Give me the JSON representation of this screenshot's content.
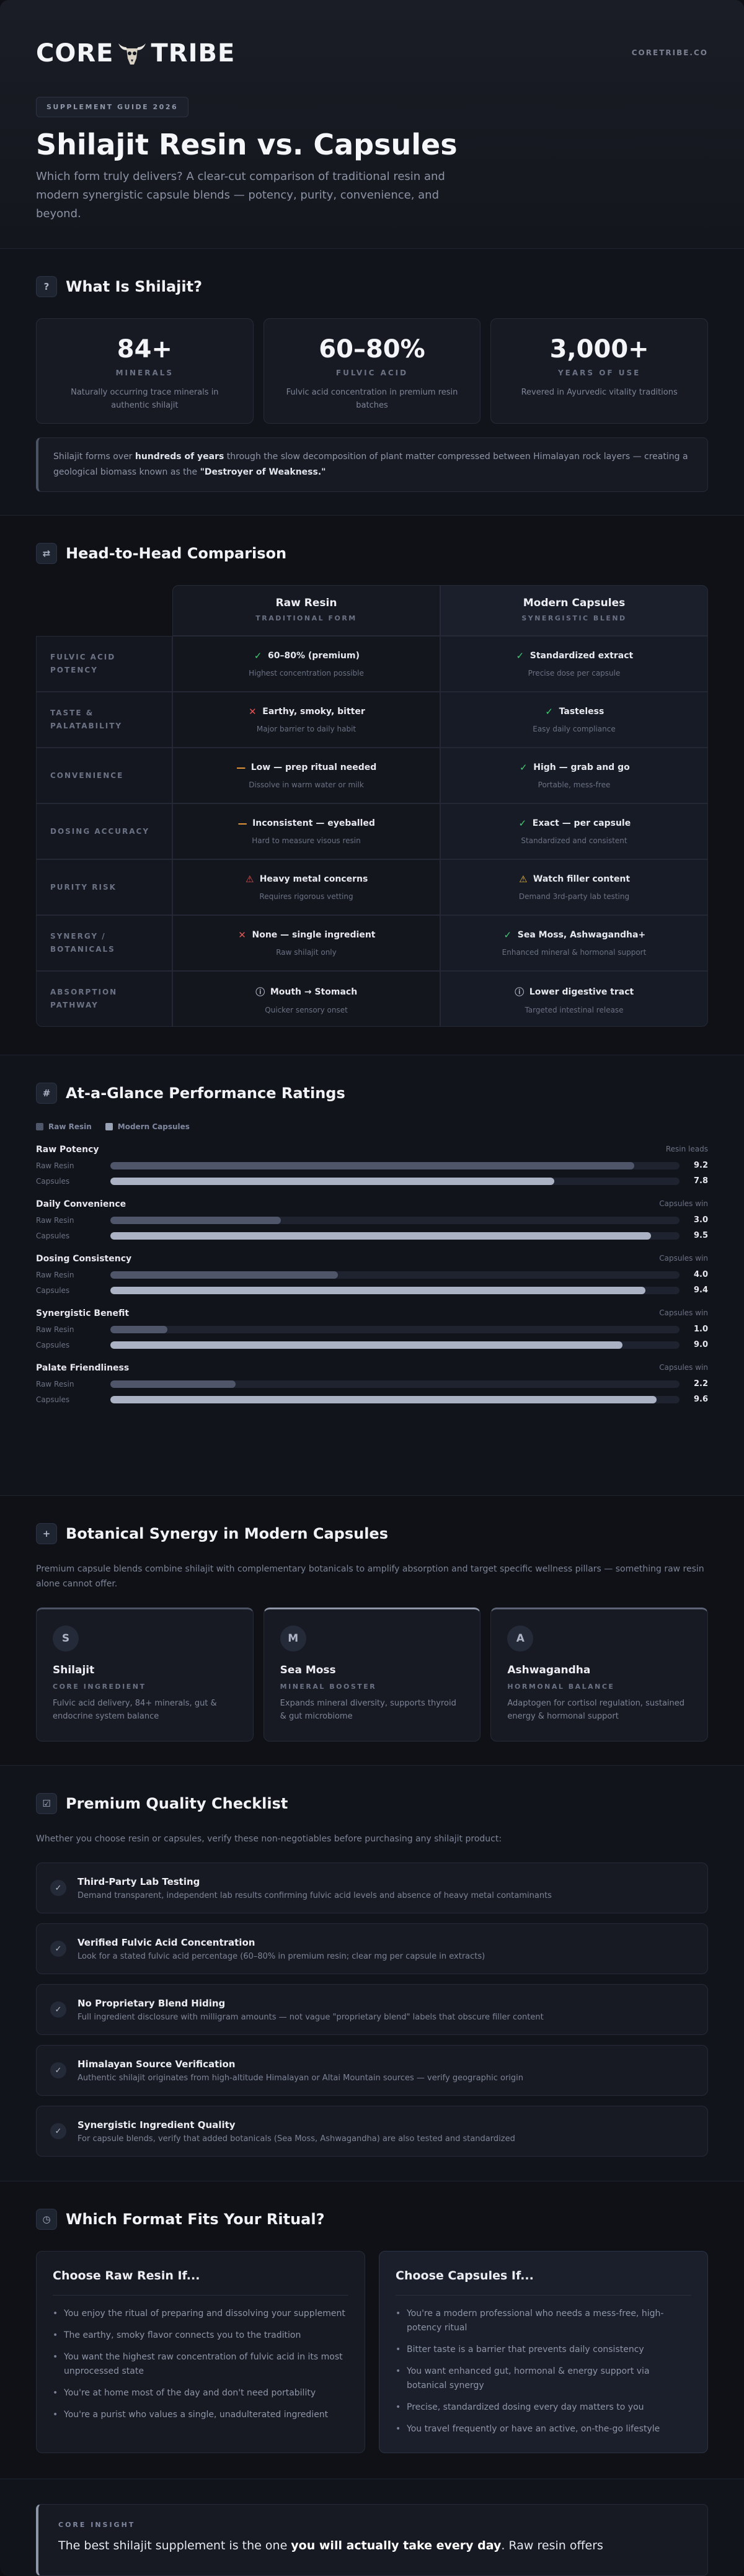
{
  "header": {
    "logo_left": "CORE",
    "logo_right": "TRIBE",
    "site": "CORETRIBE.CO",
    "badge": "SUPPLEMENT GUIDE 2026",
    "title": "Shilajit Resin vs. Capsules",
    "subtitle": "Which form truly delivers? A clear-cut comparison of traditional resin and modern synergistic capsule blends — potency, purity, convenience, and beyond."
  },
  "what": {
    "icon": "question-icon",
    "title": "What Is Shilajit?",
    "stats": [
      {
        "num": "84+",
        "label": "MINERALS",
        "desc": "Naturally occurring trace minerals in authentic shilajit"
      },
      {
        "num": "60–80%",
        "label": "FULVIC ACID",
        "desc": "Fulvic acid concentration in premium resin batches"
      },
      {
        "num": "3,000+",
        "label": "YEARS OF USE",
        "desc": "Revered in Ayurvedic vitality traditions"
      }
    ],
    "quote_a": "Shilajit forms over ",
    "quote_b": "hundreds of years",
    "quote_c": " through the slow decomposition of plant matter compressed between Himalayan rock layers — creating a geological biomass known as the ",
    "quote_d": "\"Destroyer of Weakness.\""
  },
  "compare": {
    "icon": "swap-icon",
    "title": "Head-to-Head Comparison",
    "resin_head": "Raw Resin",
    "resin_sub": "TRADITIONAL FORM",
    "caps_head": "Modern Capsules",
    "caps_sub": "SYNERGISTIC BLEND",
    "rows": [
      {
        "label": "FULVIC ACID POTENCY",
        "resin": {
          "icon": "check",
          "main": "60–80% (premium)",
          "sub": "Highest concentration possible"
        },
        "caps": {
          "icon": "check",
          "main": "Standardized extract",
          "sub": "Precise dose per capsule"
        }
      },
      {
        "label": "TASTE & PALATABILITY",
        "resin": {
          "icon": "x",
          "main": "Earthy, smoky, bitter",
          "sub": "Major barrier to daily habit"
        },
        "caps": {
          "icon": "check",
          "main": "Tasteless",
          "sub": "Easy daily compliance"
        }
      },
      {
        "label": "CONVENIENCE",
        "resin": {
          "icon": "dash",
          "main": "Low — prep ritual needed",
          "sub": "Dissolve in warm water or milk"
        },
        "caps": {
          "icon": "check",
          "main": "High — grab and go",
          "sub": "Portable, mess-free"
        }
      },
      {
        "label": "DOSING ACCURACY",
        "resin": {
          "icon": "dash",
          "main": "Inconsistent — eyeballed",
          "sub": "Hard to measure visous resin"
        },
        "caps": {
          "icon": "check",
          "main": "Exact — per capsule",
          "sub": "Standardized and consistent"
        }
      },
      {
        "label": "PURITY RISK",
        "resin": {
          "icon": "warn-red",
          "main": "Heavy metal concerns",
          "sub": "Requires rigorous vetting"
        },
        "caps": {
          "icon": "warn-amber",
          "main": "Watch filler content",
          "sub": "Demand 3rd-party lab testing"
        }
      },
      {
        "label": "SYNERGY / BOTANICALS",
        "resin": {
          "icon": "x",
          "main": "None — single ingredient",
          "sub": "Raw shilajit only"
        },
        "caps": {
          "icon": "check",
          "main": "Sea Moss, Ashwagandha+",
          "sub": "Enhanced mineral & hormonal support"
        }
      },
      {
        "label": "ABSORPTION PATHWAY",
        "resin": {
          "icon": "info",
          "main": "Mouth → Stomach",
          "sub": "Quicker sensory onset"
        },
        "caps": {
          "icon": "info",
          "main": "Lower digestive tract",
          "sub": "Targeted intestinal release"
        }
      }
    ]
  },
  "ratings": {
    "icon": "hash-icon",
    "title": "At-a-Glance Performance Ratings",
    "legend_resin": "Raw Resin",
    "legend_caps": "Modern Capsules",
    "row_resin": "Raw Resin",
    "row_caps": "Capsules",
    "max": 10,
    "metrics": [
      {
        "name": "Raw Potency",
        "lead": "Resin leads",
        "resin": 9.2,
        "caps": 7.8
      },
      {
        "name": "Daily Convenience",
        "lead": "Capsules win",
        "resin": 3.0,
        "caps": 9.5
      },
      {
        "name": "Dosing Consistency",
        "lead": "Capsules win",
        "resin": 4.0,
        "caps": 9.4
      },
      {
        "name": "Synergistic Benefit",
        "lead": "Capsules win",
        "resin": 1.0,
        "caps": 9.0
      },
      {
        "name": "Palate Friendliness",
        "lead": "Capsules win",
        "resin": 2.2,
        "caps": 9.6
      }
    ]
  },
  "synergy": {
    "icon": "plus-icon",
    "title": "Botanical Synergy in Modern Capsules",
    "intro": "Premium capsule blends combine shilajit with complementary botanicals to amplify absorption and target specific wellness pillars — something raw resin alone cannot offer.",
    "cards": [
      {
        "initial": "S",
        "name": "Shilajit",
        "role": "CORE INGREDIENT",
        "desc": "Fulvic acid delivery, 84+ minerals, gut & endocrine system balance"
      },
      {
        "initial": "M",
        "name": "Sea Moss",
        "role": "MINERAL BOOSTER",
        "desc": "Expands mineral diversity, supports thyroid & gut microbiome"
      },
      {
        "initial": "A",
        "name": "Ashwagandha",
        "role": "HORMONAL BALANCE",
        "desc": "Adaptogen for cortisol regulation, sustained energy & hormonal support"
      }
    ]
  },
  "checklist": {
    "icon": "checkbox-icon",
    "title": "Premium Quality Checklist",
    "intro": "Whether you choose resin or capsules, verify these non-negotiables before purchasing any shilajit product:",
    "items": [
      {
        "title": "Third-Party Lab Testing",
        "desc": "Demand transparent, independent lab results confirming fulvic acid levels and absence of heavy metal contaminants"
      },
      {
        "title": "Verified Fulvic Acid Concentration",
        "desc": "Look for a stated fulvic acid percentage (60–80% in premium resin; clear mg per capsule in extracts)"
      },
      {
        "title": "No Proprietary Blend Hiding",
        "desc": "Full ingredient disclosure with milligram amounts — not vague \"proprietary blend\" labels that obscure filler content"
      },
      {
        "title": "Himalayan Source Verification",
        "desc": "Authentic shilajit originates from high-altitude Himalayan or Altai Mountain sources — verify geographic origin"
      },
      {
        "title": "Synergistic Ingredient Quality",
        "desc": "For capsule blends, verify that added botanicals (Sea Moss, Ashwagandha) are also tested and standardized"
      }
    ]
  },
  "fit": {
    "icon": "clock-icon",
    "title": "Which Format Fits Your Ritual?",
    "resin_title": "Choose Raw Resin If...",
    "resin_items": [
      "You enjoy the ritual of preparing and dissolving your supplement",
      "The earthy, smoky flavor connects you to the tradition",
      "You want the highest raw concentration of fulvic acid in its most unprocessed state",
      "You're at home most of the day and don't need portability",
      "You're a purist who values a single, unadulterated ingredient"
    ],
    "caps_title": "Choose Capsules If...",
    "caps_items": [
      "You're a modern professional who needs a mess-free, high-potency ritual",
      "Bitter taste is a barrier that prevents daily consistency",
      "You want enhanced gut, hormonal & energy support via botanical synergy",
      "Precise, standardized dosing every day matters to you",
      "You travel frequently or have an active, on-the-go lifestyle"
    ]
  },
  "insight": {
    "label": "CORE INSIGHT",
    "text_a": "The best shilajit supplement is the one ",
    "text_b": "you will actually take every day",
    "text_c": ". Raw resin offers"
  }
}
